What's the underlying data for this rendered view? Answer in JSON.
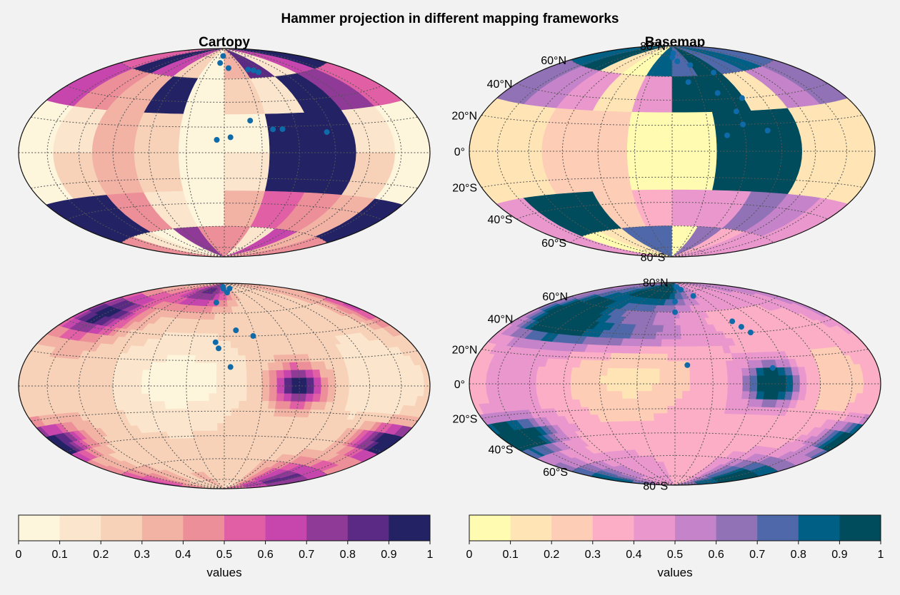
{
  "suptitle": "Hammer projection in different mapping frameworks",
  "titles": {
    "left": "Cartopy",
    "right": "Basemap"
  },
  "lat_labels": [
    "80°N",
    "60°N",
    "40°N",
    "20°N",
    "0°",
    "20°S",
    "40°S",
    "60°S",
    "80°S"
  ],
  "colormaps": {
    "left": [
      "#fdf5dc",
      "#fbe6cd",
      "#f7d2b8",
      "#f2b2a4",
      "#ec8f98",
      "#e15fa4",
      "#c646ad",
      "#8f3a97",
      "#5b2a85",
      "#232264"
    ],
    "right": [
      "#fffbb1",
      "#ffe5b5",
      "#fecdb6",
      "#fbaec5",
      "#ea97ce",
      "#c583c9",
      "#9272b7",
      "#4f68a9",
      "#005f85",
      "#004c5c"
    ]
  },
  "chart_data": [
    {
      "type": "heatmap",
      "panel": "top-left",
      "title": "Cartopy",
      "cmap": "left",
      "lon_bins": 10,
      "lat_bins": 6,
      "grid": true,
      "values": [
        [
          0.55,
          0.95,
          0.65,
          0.25,
          0.05,
          0.35,
          0.85,
          0.15,
          0.65,
          0.95
        ],
        [
          0.65,
          0.45,
          0.35,
          0.95,
          0.05,
          0.25,
          0.15,
          0.95,
          0.75,
          0.55
        ],
        [
          0.05,
          0.15,
          0.35,
          0.25,
          0.05,
          0.05,
          0.95,
          0.95,
          0.15,
          0.05
        ],
        [
          0.05,
          0.25,
          0.35,
          0.25,
          0.05,
          0.15,
          0.95,
          0.95,
          0.25,
          0.05
        ],
        [
          0.95,
          0.95,
          0.45,
          0.15,
          0.05,
          0.35,
          0.55,
          0.45,
          0.35,
          0.95
        ],
        [
          0.45,
          0.15,
          0.05,
          0.75,
          0.45,
          0.45,
          0.15,
          0.65,
          0.35,
          0.45
        ]
      ],
      "points": [
        [
          -5,
          82
        ],
        [
          -10,
          75
        ],
        [
          8,
          70
        ],
        [
          42,
          68
        ],
        [
          50,
          67
        ],
        [
          55,
          65
        ],
        [
          22,
          25
        ],
        [
          40,
          18
        ],
        [
          48,
          18
        ],
        [
          85,
          15
        ],
        [
          5,
          12
        ],
        [
          -6,
          10
        ]
      ]
    },
    {
      "type": "heatmap",
      "panel": "top-right",
      "title": "Basemap",
      "cmap": "right",
      "lon_bins": 10,
      "lat_bins": 6,
      "grid": true,
      "values": [
        [
          0.85,
          0.95,
          0.15,
          0.05,
          0.85,
          0.75,
          0.95,
          0.75,
          0.85,
          0.75
        ],
        [
          0.65,
          0.55,
          0.45,
          0.15,
          0.45,
          0.95,
          0.95,
          0.15,
          0.55,
          0.65
        ],
        [
          0.15,
          0.15,
          0.25,
          0.25,
          0.05,
          0.05,
          0.95,
          0.95,
          0.15,
          0.15
        ],
        [
          0.15,
          0.15,
          0.25,
          0.25,
          0.05,
          0.05,
          0.95,
          0.95,
          0.15,
          0.15
        ],
        [
          0.45,
          0.95,
          0.95,
          0.25,
          0.35,
          0.45,
          0.45,
          0.65,
          0.55,
          0.45
        ],
        [
          0.45,
          0.05,
          0.15,
          0.75,
          0.75,
          0.05,
          0.65,
          0.35,
          0.45,
          0.45
        ]
      ],
      "points": [
        [
          5,
          82
        ],
        [
          0,
          78
        ],
        [
          12,
          74
        ],
        [
          35,
          70
        ],
        [
          62,
          62
        ],
        [
          20,
          55
        ],
        [
          48,
          45
        ],
        [
          70,
          40
        ],
        [
          58,
          30
        ],
        [
          60,
          20
        ],
        [
          80,
          15
        ],
        [
          45,
          12
        ]
      ]
    },
    {
      "type": "contourf",
      "panel": "bottom-left",
      "cmap": "left",
      "grid": true,
      "features": [
        {
          "lon": 175,
          "lat": -35,
          "sx": 30,
          "sy": 8,
          "amp": 0.85
        },
        {
          "lon": 60,
          "lat": 0,
          "sx": 14,
          "sy": 10,
          "amp": 0.75
        },
        {
          "lon": 210,
          "lat": 50,
          "sx": 30,
          "sy": 12,
          "amp": 0.75
        },
        {
          "lon": 300,
          "lat": 80,
          "sx": 60,
          "sy": 12,
          "amp": 0.55
        },
        {
          "lon": 150,
          "lat": -72,
          "sx": 60,
          "sy": 12,
          "amp": 0.55
        }
      ],
      "base": 0.22,
      "points": [
        [
          -10,
          86
        ],
        [
          -5,
          84
        ],
        [
          10,
          80
        ],
        [
          30,
          84
        ],
        [
          -15,
          70
        ],
        [
          12,
          45
        ],
        [
          28,
          40
        ],
        [
          -8,
          35
        ],
        [
          -5,
          30
        ],
        [
          5,
          15
        ]
      ]
    },
    {
      "type": "contourf",
      "panel": "bottom-right",
      "cmap": "right",
      "grid": true,
      "features": [
        {
          "lon": 195,
          "lat": -35,
          "sx": 30,
          "sy": 8,
          "amp": 0.9
        },
        {
          "lon": 80,
          "lat": 0,
          "sx": 14,
          "sy": 10,
          "amp": 0.85
        },
        {
          "lon": 230,
          "lat": 50,
          "sx": 30,
          "sy": 12,
          "amp": 0.8
        },
        {
          "lon": 300,
          "lat": 80,
          "sx": 80,
          "sy": 14,
          "amp": 0.65
        },
        {
          "lon": 170,
          "lat": -72,
          "sx": 60,
          "sy": 12,
          "amp": 0.6
        },
        {
          "lon": 300,
          "lat": 40,
          "sx": 50,
          "sy": 10,
          "amp": 0.4
        }
      ],
      "base": 0.35,
      "points": [
        [
          10,
          85
        ],
        [
          25,
          82
        ],
        [
          45,
          75
        ],
        [
          0,
          70
        ],
        [
          0,
          60
        ],
        [
          65,
          50
        ],
        [
          70,
          45
        ],
        [
          75,
          40
        ],
        [
          10,
          15
        ],
        [
          80,
          12
        ]
      ]
    },
    {
      "type": "colorbar",
      "panel": "bottom-left",
      "cmap": "left",
      "ticks": [
        "0",
        "0.1",
        "0.2",
        "0.3",
        "0.4",
        "0.5",
        "0.6",
        "0.7",
        "0.8",
        "0.9",
        "1"
      ],
      "label": "values"
    },
    {
      "type": "colorbar",
      "panel": "bottom-right",
      "cmap": "right",
      "ticks": [
        "0",
        "0.1",
        "0.2",
        "0.3",
        "0.4",
        "0.5",
        "0.6",
        "0.7",
        "0.8",
        "0.9",
        "1"
      ],
      "label": "values"
    }
  ]
}
